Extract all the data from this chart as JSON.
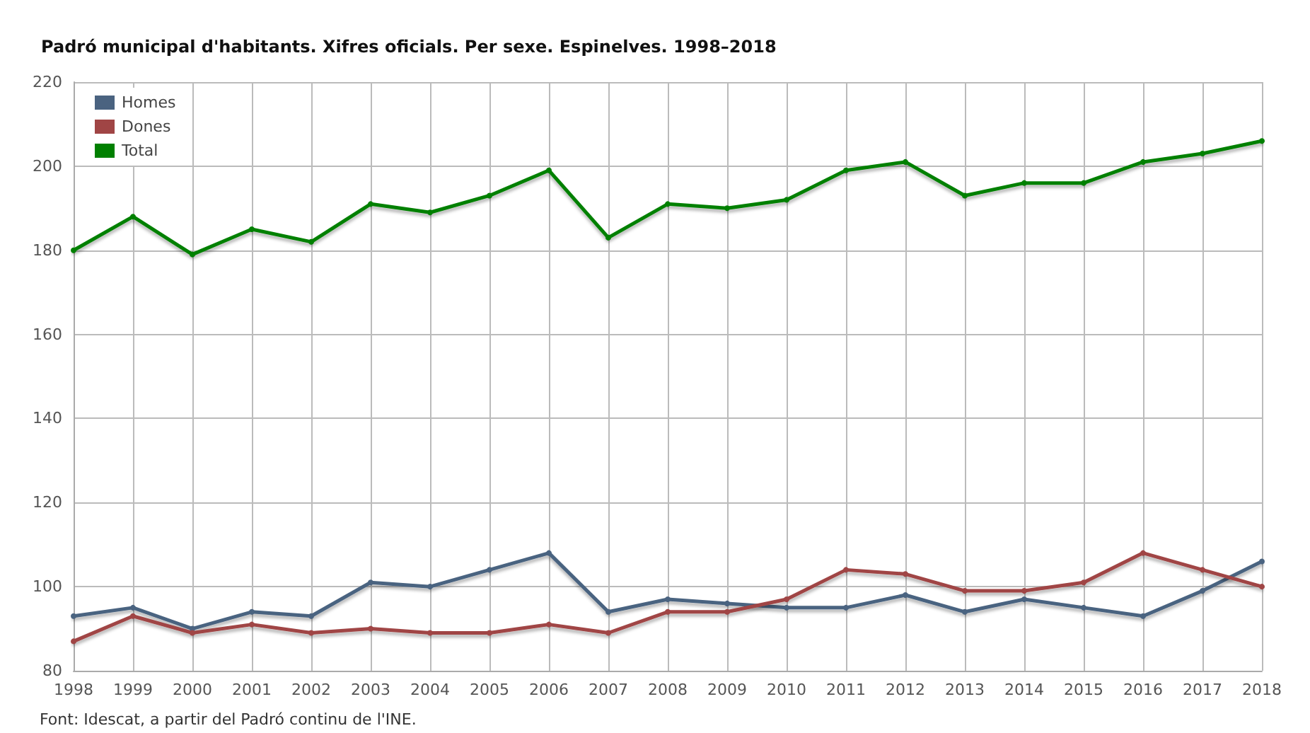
{
  "chart_data": {
    "type": "line",
    "title": "Padró municipal d'habitants. Xifres oficials. Per sexe. Espinelves. 1998–2018",
    "categories": [
      "1998",
      "1999",
      "2000",
      "2001",
      "2002",
      "2003",
      "2004",
      "2005",
      "2006",
      "2007",
      "2008",
      "2009",
      "2010",
      "2011",
      "2012",
      "2013",
      "2014",
      "2015",
      "2016",
      "2017",
      "2018"
    ],
    "series": [
      {
        "name": "Homes",
        "color": "#4a6380",
        "values": [
          93,
          95,
          90,
          94,
          93,
          101,
          100,
          104,
          108,
          94,
          97,
          96,
          95,
          95,
          98,
          94,
          97,
          95,
          93,
          99,
          106
        ]
      },
      {
        "name": "Dones",
        "color": "#a04545",
        "values": [
          87,
          93,
          89,
          91,
          89,
          90,
          89,
          89,
          91,
          89,
          94,
          94,
          97,
          104,
          103,
          99,
          99,
          101,
          108,
          104,
          100
        ]
      },
      {
        "name": "Total",
        "color": "#008000",
        "values": [
          180,
          188,
          179,
          185,
          182,
          191,
          189,
          193,
          199,
          183,
          191,
          190,
          192,
          199,
          201,
          193,
          196,
          196,
          201,
          203,
          206
        ]
      }
    ],
    "ylim": [
      80,
      220
    ],
    "yticks": [
      80,
      100,
      120,
      140,
      160,
      180,
      200,
      220
    ],
    "grid": true,
    "legend": "top left",
    "marker": "circle",
    "line_style": "solid",
    "annotations": [
      "Font: Idescat, a partir del Padró continu de l'INE."
    ]
  }
}
